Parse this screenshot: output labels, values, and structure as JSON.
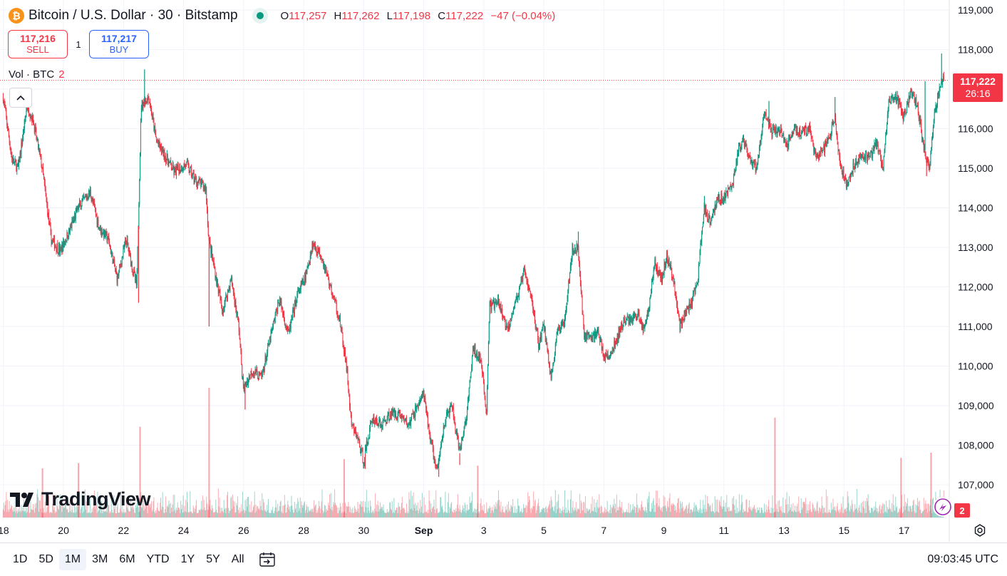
{
  "header": {
    "coin_icon": "bitcoin-icon",
    "title": "Bitcoin / U.S. Dollar · 30 · Bitstamp",
    "status_icon": "market-open-dot-icon",
    "ohlc": {
      "o_label": "O",
      "o": "117,257",
      "h_label": "H",
      "h": "117,262",
      "l_label": "L",
      "l": "117,198",
      "c_label": "C",
      "c": "117,222",
      "change": "−47 (−0.04%)"
    }
  },
  "trade": {
    "sell_price": "117,216",
    "sell_label": "SELL",
    "spread": "1",
    "buy_price": "117,217",
    "buy_label": "BUY"
  },
  "volume_legend": {
    "label": "Vol · BTC",
    "value": "2"
  },
  "last_price_tag": {
    "price": "117,222",
    "countdown": "26:16"
  },
  "volume_tag": "2",
  "logo_text": "TradingView",
  "bottom_bar": {
    "ranges": [
      "1D",
      "5D",
      "1M",
      "3M",
      "6M",
      "YTD",
      "1Y",
      "5Y",
      "All"
    ],
    "active_range": "1M",
    "clock": "09:03:45 UTC"
  },
  "colors": {
    "up": "#089981",
    "down": "#f23645",
    "grid": "#f0f3fa",
    "text": "#131722"
  },
  "chart_data": {
    "type": "candlestick",
    "title": "Bitcoin / U.S. Dollar · 30 · Bitstamp",
    "y_ticks": [
      "119,000",
      "118,000",
      "117,000",
      "116,000",
      "115,000",
      "114,000",
      "113,000",
      "112,000",
      "111,000",
      "110,000",
      "109,000",
      "108,000",
      "107,000"
    ],
    "ylim": [
      106400,
      119200
    ],
    "x_ticks": [
      {
        "label": "18",
        "day": 18
      },
      {
        "label": "20",
        "day": 20
      },
      {
        "label": "22",
        "day": 22
      },
      {
        "label": "24",
        "day": 24
      },
      {
        "label": "26",
        "day": 26
      },
      {
        "label": "28",
        "day": 28
      },
      {
        "label": "30",
        "day": 30
      },
      {
        "label": "Sep",
        "day": 32,
        "bold": true
      },
      {
        "label": "3",
        "day": 34
      },
      {
        "label": "5",
        "day": 36
      },
      {
        "label": "7",
        "day": 38
      },
      {
        "label": "9",
        "day": 40
      },
      {
        "label": "11",
        "day": 42
      },
      {
        "label": "13",
        "day": 44
      },
      {
        "label": "15",
        "day": 46
      },
      {
        "label": "17",
        "day": 48
      }
    ],
    "xlim_days": [
      17.95,
      49.38
    ],
    "last_price": 117222,
    "price_path": [
      [
        18.0,
        116800
      ],
      [
        18.3,
        115200
      ],
      [
        18.5,
        115000
      ],
      [
        18.8,
        116600
      ],
      [
        19.0,
        116200
      ],
      [
        19.3,
        115000
      ],
      [
        19.6,
        113200
      ],
      [
        19.9,
        112900
      ],
      [
        20.2,
        113400
      ],
      [
        20.5,
        114000
      ],
      [
        20.9,
        114400
      ],
      [
        21.2,
        113500
      ],
      [
        21.5,
        113200
      ],
      [
        21.8,
        112200
      ],
      [
        22.1,
        113200
      ],
      [
        22.45,
        112000
      ],
      [
        22.6,
        116600
      ],
      [
        22.85,
        116800
      ],
      [
        23.1,
        115700
      ],
      [
        23.4,
        115300
      ],
      [
        23.7,
        114900
      ],
      [
        24.1,
        115100
      ],
      [
        24.4,
        114700
      ],
      [
        24.75,
        114500
      ],
      [
        24.85,
        113200
      ],
      [
        25.1,
        112200
      ],
      [
        25.3,
        111400
      ],
      [
        25.6,
        112200
      ],
      [
        25.85,
        111000
      ],
      [
        26.0,
        109400
      ],
      [
        26.3,
        109900
      ],
      [
        26.6,
        109700
      ],
      [
        26.9,
        110700
      ],
      [
        27.2,
        111700
      ],
      [
        27.5,
        110800
      ],
      [
        27.8,
        111800
      ],
      [
        28.1,
        112300
      ],
      [
        28.3,
        113100
      ],
      [
        28.6,
        112800
      ],
      [
        28.9,
        112000
      ],
      [
        29.2,
        111200
      ],
      [
        29.45,
        109900
      ],
      [
        29.6,
        108500
      ],
      [
        29.8,
        108200
      ],
      [
        30.0,
        107600
      ],
      [
        30.3,
        108700
      ],
      [
        30.6,
        108500
      ],
      [
        30.9,
        108800
      ],
      [
        31.2,
        108800
      ],
      [
        31.5,
        108500
      ],
      [
        31.8,
        109000
      ],
      [
        32.0,
        109300
      ],
      [
        32.2,
        108300
      ],
      [
        32.45,
        107300
      ],
      [
        32.7,
        108600
      ],
      [
        32.95,
        109000
      ],
      [
        33.2,
        107800
      ],
      [
        33.45,
        108800
      ],
      [
        33.65,
        110400
      ],
      [
        33.9,
        110200
      ],
      [
        34.1,
        108800
      ],
      [
        34.2,
        111500
      ],
      [
        34.5,
        111600
      ],
      [
        34.8,
        110900
      ],
      [
        35.0,
        111500
      ],
      [
        35.2,
        111900
      ],
      [
        35.35,
        112400
      ],
      [
        35.6,
        111700
      ],
      [
        35.85,
        110500
      ],
      [
        36.0,
        111100
      ],
      [
        36.25,
        109700
      ],
      [
        36.45,
        110800
      ],
      [
        36.7,
        111200
      ],
      [
        36.95,
        112900
      ],
      [
        37.15,
        113000
      ],
      [
        37.35,
        110800
      ],
      [
        37.6,
        110700
      ],
      [
        37.8,
        110900
      ],
      [
        38.0,
        110300
      ],
      [
        38.2,
        110200
      ],
      [
        38.4,
        110600
      ],
      [
        38.65,
        111100
      ],
      [
        38.9,
        111200
      ],
      [
        39.15,
        111300
      ],
      [
        39.35,
        110900
      ],
      [
        39.55,
        111700
      ],
      [
        39.7,
        112600
      ],
      [
        39.95,
        112200
      ],
      [
        40.1,
        112800
      ],
      [
        40.35,
        112100
      ],
      [
        40.55,
        111000
      ],
      [
        40.75,
        111400
      ],
      [
        40.95,
        111600
      ],
      [
        41.15,
        112300
      ],
      [
        41.35,
        114000
      ],
      [
        41.55,
        113700
      ],
      [
        41.8,
        114200
      ],
      [
        42.05,
        114300
      ],
      [
        42.3,
        114600
      ],
      [
        42.5,
        115500
      ],
      [
        42.65,
        115700
      ],
      [
        42.85,
        115200
      ],
      [
        43.1,
        115000
      ],
      [
        43.35,
        116400
      ],
      [
        43.6,
        115900
      ],
      [
        43.85,
        116000
      ],
      [
        44.1,
        115600
      ],
      [
        44.35,
        116000
      ],
      [
        44.6,
        115900
      ],
      [
        44.85,
        116000
      ],
      [
        45.1,
        115200
      ],
      [
        45.35,
        115500
      ],
      [
        45.55,
        115800
      ],
      [
        45.7,
        116300
      ],
      [
        45.9,
        115000
      ],
      [
        46.1,
        114600
      ],
      [
        46.35,
        115100
      ],
      [
        46.6,
        115400
      ],
      [
        46.85,
        115200
      ],
      [
        47.1,
        115700
      ],
      [
        47.3,
        114900
      ],
      [
        47.5,
        116700
      ],
      [
        47.75,
        116800
      ],
      [
        48.0,
        116300
      ],
      [
        48.25,
        116900
      ],
      [
        48.45,
        116600
      ],
      [
        48.65,
        115600
      ],
      [
        48.85,
        115000
      ],
      [
        49.0,
        116300
      ],
      [
        49.2,
        117000
      ],
      [
        49.35,
        117500
      ],
      [
        49.38,
        117222
      ]
    ],
    "extremes": [
      {
        "day": 22.7,
        "high": 117500
      },
      {
        "day": 22.5,
        "low": 111600
      },
      {
        "day": 24.85,
        "low": 111000
      },
      {
        "day": 26.05,
        "low": 108900
      },
      {
        "day": 30.05,
        "low": 107400
      },
      {
        "day": 32.5,
        "low": 107200
      },
      {
        "day": 33.2,
        "low": 107500
      },
      {
        "day": 37.15,
        "high": 113400
      },
      {
        "day": 41.35,
        "high": 114300
      },
      {
        "day": 43.5,
        "high": 116700
      },
      {
        "day": 45.7,
        "high": 116800
      },
      {
        "day": 48.7,
        "high": 117200
      },
      {
        "day": 48.75,
        "low": 114800
      },
      {
        "day": 49.25,
        "high": 117900
      }
    ],
    "volume_spikes": [
      {
        "day": 24.85,
        "value": 1.0
      },
      {
        "day": 22.55,
        "value": 0.7
      },
      {
        "day": 47.9,
        "value": 0.46
      },
      {
        "day": 43.7,
        "value": 0.77
      },
      {
        "day": 48.9,
        "value": 0.5
      },
      {
        "day": 20.5,
        "value": 0.42
      },
      {
        "day": 29.35,
        "value": 0.45
      },
      {
        "day": 33.8,
        "value": 0.4
      },
      {
        "day": 19.3,
        "value": 0.38
      }
    ]
  }
}
